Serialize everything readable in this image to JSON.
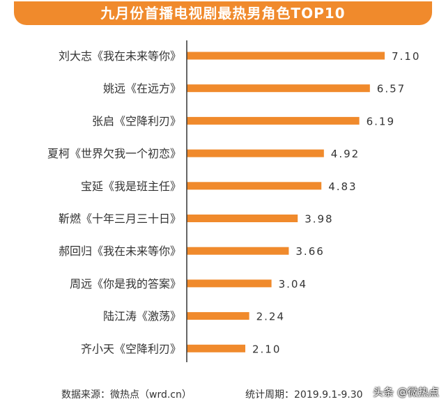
{
  "chart_data": {
    "type": "bar",
    "orientation": "horizontal",
    "title": "九月份首播电视剧最热男角色TOP10",
    "categories": [
      "刘大志《我在未来等你》",
      "姚远《在远方》",
      "张启《空降利刃》",
      "夏柯《世界欠我一个初恋》",
      "宝延《我是班主任》",
      "靳燃《十年三月三十日》",
      "郝回归《我在未来等你》",
      "周远《你是我的答案》",
      "陆江涛《激荡》",
      "齐小天《空降利刃》"
    ],
    "values": [
      7.1,
      6.57,
      6.19,
      4.92,
      4.83,
      3.98,
      3.66,
      3.04,
      2.24,
      2.1
    ],
    "value_labels": [
      "7.10",
      "6.57",
      "6.19",
      "4.92",
      "4.83",
      "3.98",
      "3.66",
      "3.04",
      "2.24",
      "2.10"
    ],
    "xlim": [
      0,
      8
    ],
    "bar_color": "#f08a2c",
    "axis_color": "#333333",
    "grid": false
  },
  "header": {
    "banner_color": "#f08a2c"
  },
  "footer": {
    "source": "数据来源：微热点（wrd.cn）",
    "period": "统计周期：2019.9.1-9.30"
  },
  "watermark": "头条 @微热点"
}
